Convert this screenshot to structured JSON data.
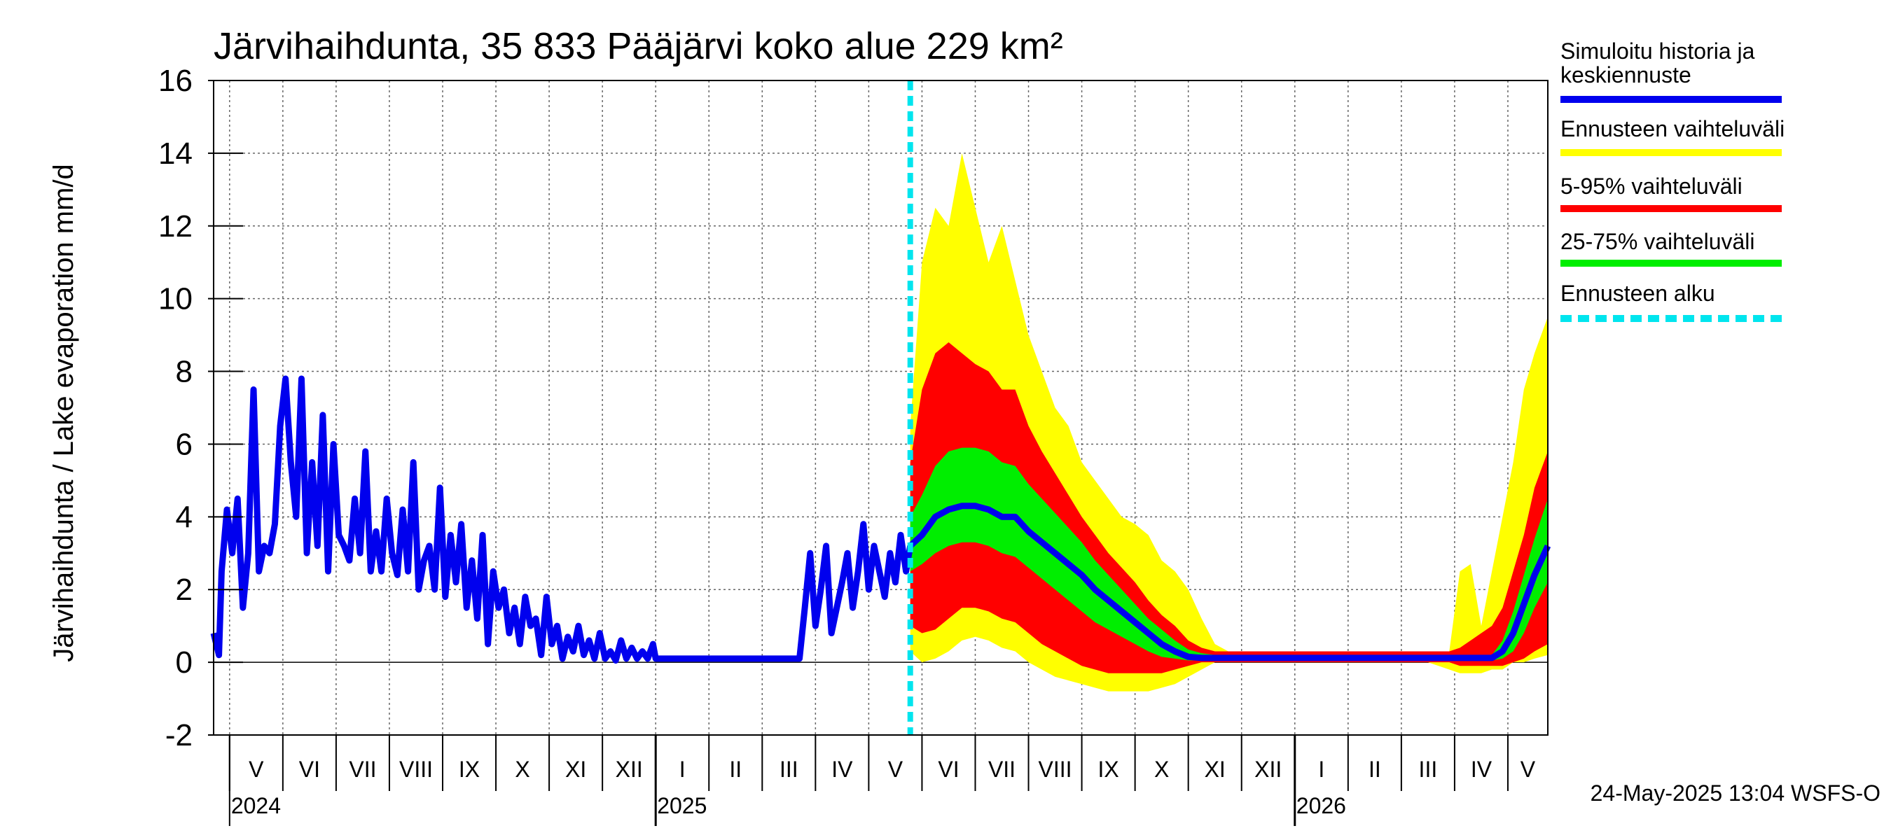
{
  "chart_data": {
    "type": "area",
    "title": "Järvihaihdunta, 35 833 Pääjärvi koko alue 229 km²",
    "ylabel": "Järvihaihdunta / Lake evaporation   mm/d",
    "ylim": [
      -2,
      16
    ],
    "yticks": [
      -2,
      0,
      2,
      4,
      6,
      8,
      10,
      12,
      14,
      16
    ],
    "ytick_labels": [
      "-2",
      "0",
      "2",
      "4",
      "6",
      "8",
      "10",
      "12",
      "14",
      "16"
    ],
    "grid": true,
    "x_unit": "months since 2024-04-01",
    "xlim": [
      0.7,
      25.75
    ],
    "months": [
      {
        "label": "V",
        "start": 1
      },
      {
        "label": "VI",
        "start": 2
      },
      {
        "label": "VII",
        "start": 3
      },
      {
        "label": "VIII",
        "start": 4
      },
      {
        "label": "IX",
        "start": 5
      },
      {
        "label": "X",
        "start": 6
      },
      {
        "label": "XI",
        "start": 7
      },
      {
        "label": "XII",
        "start": 8
      },
      {
        "label": "I",
        "start": 9
      },
      {
        "label": "II",
        "start": 10
      },
      {
        "label": "III",
        "start": 11
      },
      {
        "label": "IV",
        "start": 12
      },
      {
        "label": "V",
        "start": 13
      },
      {
        "label": "VI",
        "start": 14
      },
      {
        "label": "VII",
        "start": 15
      },
      {
        "label": "VIII",
        "start": 16
      },
      {
        "label": "IX",
        "start": 17
      },
      {
        "label": "X",
        "start": 18
      },
      {
        "label": "XI",
        "start": 19
      },
      {
        "label": "XII",
        "start": 20
      },
      {
        "label": "I",
        "start": 21
      },
      {
        "label": "II",
        "start": 22
      },
      {
        "label": "III",
        "start": 23
      },
      {
        "label": "IV",
        "start": 24
      },
      {
        "label": "V",
        "start": 25
      }
    ],
    "years": [
      {
        "label": "2024",
        "at": 1
      },
      {
        "label": "2025",
        "at": 9
      },
      {
        "label": "2026",
        "at": 21
      }
    ],
    "forecast_start": 13.78,
    "history_color": "#0000ee",
    "history": {
      "name": "Simuloitu historia ja keskiennuste",
      "x": [
        0.7,
        0.8,
        0.85,
        0.95,
        1.05,
        1.15,
        1.25,
        1.35,
        1.45,
        1.55,
        1.65,
        1.75,
        1.85,
        1.95,
        2.05,
        2.15,
        2.25,
        2.35,
        2.45,
        2.55,
        2.65,
        2.75,
        2.85,
        2.95,
        3.05,
        3.15,
        3.25,
        3.35,
        3.45,
        3.55,
        3.65,
        3.75,
        3.85,
        3.95,
        4.05,
        4.15,
        4.25,
        4.35,
        4.45,
        4.55,
        4.65,
        4.75,
        4.85,
        4.95,
        5.05,
        5.15,
        5.25,
        5.35,
        5.45,
        5.55,
        5.65,
        5.75,
        5.85,
        5.95,
        6.05,
        6.15,
        6.25,
        6.35,
        6.45,
        6.55,
        6.65,
        6.75,
        6.85,
        6.95,
        7.05,
        7.15,
        7.25,
        7.35,
        7.45,
        7.55,
        7.65,
        7.75,
        7.85,
        7.95,
        8.05,
        8.15,
        8.25,
        8.35,
        8.45,
        8.55,
        8.65,
        8.75,
        8.85,
        8.95,
        9.0,
        9.5,
        10.0,
        10.5,
        11.0,
        11.5,
        11.7,
        11.8,
        11.9,
        12.0,
        12.1,
        12.2,
        12.3,
        12.4,
        12.5,
        12.6,
        12.7,
        12.8,
        12.9,
        13.0,
        13.1,
        13.2,
        13.3,
        13.4,
        13.5,
        13.6,
        13.7,
        13.78
      ],
      "y": [
        0.8,
        0.2,
        2.5,
        4.2,
        3.0,
        4.5,
        1.5,
        3.0,
        7.5,
        2.5,
        3.2,
        3.0,
        3.8,
        6.5,
        7.8,
        5.5,
        4.0,
        7.8,
        3.0,
        5.5,
        3.2,
        6.8,
        2.5,
        6.0,
        3.5,
        3.2,
        2.8,
        4.5,
        3.0,
        5.8,
        2.5,
        3.6,
        2.5,
        4.5,
        3.0,
        2.4,
        4.2,
        2.5,
        5.5,
        2.0,
        2.8,
        3.2,
        2.0,
        4.8,
        1.8,
        3.5,
        2.2,
        3.8,
        1.5,
        2.8,
        1.2,
        3.5,
        0.5,
        2.5,
        1.5,
        2.0,
        0.8,
        1.5,
        0.5,
        1.8,
        1.0,
        1.2,
        0.2,
        1.8,
        0.5,
        1.0,
        0.1,
        0.7,
        0.3,
        1.0,
        0.2,
        0.6,
        0.1,
        0.8,
        0.1,
        0.3,
        0.05,
        0.6,
        0.1,
        0.4,
        0.1,
        0.3,
        0.1,
        0.5,
        0.1,
        0.1,
        0.1,
        0.1,
        0.1,
        0.1,
        0.1,
        1.5,
        3.0,
        1.0,
        2.0,
        3.2,
        0.8,
        1.5,
        2.2,
        3.0,
        1.5,
        2.5,
        3.8,
        2.0,
        3.2,
        2.5,
        1.8,
        3.0,
        2.2,
        3.5,
        2.5,
        3.2
      ]
    },
    "forecast_x": [
      13.78,
      14.0,
      14.25,
      14.5,
      14.75,
      15.0,
      15.25,
      15.5,
      15.75,
      16.0,
      16.25,
      16.5,
      16.75,
      17.0,
      17.25,
      17.5,
      17.75,
      18.0,
      18.25,
      18.5,
      18.75,
      19.0,
      19.25,
      19.5,
      19.75,
      20.0,
      20.3,
      20.6,
      21.0,
      21.5,
      22.0,
      22.5,
      23.0,
      23.5,
      23.9,
      24.1,
      24.3,
      24.5,
      24.7,
      24.9,
      25.1,
      25.3,
      25.5,
      25.75
    ],
    "forecast_median": [
      3.2,
      3.5,
      4.0,
      4.2,
      4.3,
      4.3,
      4.2,
      4.0,
      4.0,
      3.6,
      3.3,
      3.0,
      2.7,
      2.4,
      2.0,
      1.7,
      1.4,
      1.1,
      0.8,
      0.5,
      0.3,
      0.15,
      0.12,
      0.12,
      0.12,
      0.12,
      0.12,
      0.12,
      0.12,
      0.12,
      0.12,
      0.12,
      0.12,
      0.12,
      0.12,
      0.12,
      0.12,
      0.12,
      0.12,
      0.3,
      0.8,
      1.6,
      2.4,
      3.2
    ],
    "band_25_75": {
      "name": "25-75% vaihteluväli",
      "color": "#00ee00",
      "lower": [
        2.5,
        2.7,
        3.0,
        3.2,
        3.3,
        3.3,
        3.2,
        3.0,
        2.9,
        2.6,
        2.3,
        2.0,
        1.7,
        1.4,
        1.1,
        0.9,
        0.7,
        0.5,
        0.3,
        0.15,
        0.1,
        0.05,
        0.05,
        0.05,
        0.05,
        0.05,
        0.05,
        0.05,
        0.05,
        0.05,
        0.05,
        0.05,
        0.05,
        0.05,
        0.05,
        0.05,
        0.05,
        0.05,
        0.05,
        0.1,
        0.3,
        0.8,
        1.5,
        2.2
      ],
      "upper": [
        4.0,
        4.6,
        5.4,
        5.8,
        5.9,
        5.9,
        5.8,
        5.5,
        5.4,
        4.9,
        4.5,
        4.1,
        3.7,
        3.3,
        2.8,
        2.4,
        2.0,
        1.6,
        1.2,
        0.9,
        0.6,
        0.35,
        0.25,
        0.2,
        0.2,
        0.2,
        0.2,
        0.2,
        0.2,
        0.2,
        0.2,
        0.2,
        0.2,
        0.2,
        0.2,
        0.2,
        0.2,
        0.2,
        0.2,
        0.6,
        1.4,
        2.4,
        3.4,
        4.5
      ]
    },
    "band_5_95": {
      "name": "5-95% vaihteluväli",
      "color": "#ff0000",
      "lower": [
        1.0,
        0.8,
        0.9,
        1.2,
        1.5,
        1.5,
        1.4,
        1.2,
        1.1,
        0.8,
        0.5,
        0.3,
        0.1,
        -0.1,
        -0.2,
        -0.3,
        -0.3,
        -0.3,
        -0.3,
        -0.3,
        -0.2,
        -0.1,
        0.0,
        0.0,
        0.0,
        0.0,
        0.0,
        0.0,
        0.0,
        0.0,
        0.0,
        0.0,
        0.0,
        0.0,
        0.0,
        -0.1,
        -0.1,
        -0.1,
        -0.1,
        -0.1,
        0.0,
        0.1,
        0.3,
        0.5
      ],
      "upper": [
        5.5,
        7.5,
        8.5,
        8.8,
        8.5,
        8.2,
        8.0,
        7.5,
        7.5,
        6.5,
        5.8,
        5.2,
        4.6,
        4.0,
        3.5,
        3.0,
        2.6,
        2.2,
        1.7,
        1.3,
        1.0,
        0.6,
        0.4,
        0.3,
        0.3,
        0.3,
        0.3,
        0.3,
        0.3,
        0.3,
        0.3,
        0.3,
        0.3,
        0.3,
        0.3,
        0.4,
        0.6,
        0.8,
        1.0,
        1.5,
        2.5,
        3.5,
        4.8,
        5.8
      ]
    },
    "band_full": {
      "name": "Ennusteen vaihteluväli",
      "color": "#ffff00",
      "lower": [
        0.3,
        0.0,
        0.1,
        0.3,
        0.6,
        0.7,
        0.6,
        0.4,
        0.3,
        0.0,
        -0.2,
        -0.4,
        -0.5,
        -0.6,
        -0.7,
        -0.8,
        -0.8,
        -0.8,
        -0.8,
        -0.7,
        -0.6,
        -0.4,
        -0.2,
        0.0,
        0.0,
        0.0,
        0.0,
        0.0,
        0.0,
        0.0,
        0.0,
        0.0,
        0.0,
        0.0,
        -0.2,
        -0.3,
        -0.3,
        -0.3,
        -0.2,
        -0.2,
        0.0,
        0.0,
        0.1,
        0.2
      ],
      "upper": [
        6.5,
        11.0,
        12.5,
        12.0,
        14.0,
        12.5,
        11.0,
        12.0,
        10.5,
        9.0,
        8.0,
        7.0,
        6.5,
        5.5,
        5.0,
        4.5,
        4.0,
        3.8,
        3.5,
        2.8,
        2.5,
        2.0,
        1.2,
        0.5,
        0.3,
        0.3,
        0.3,
        0.3,
        0.3,
        0.3,
        0.3,
        0.3,
        0.3,
        0.3,
        0.3,
        2.5,
        2.7,
        1.0,
        2.5,
        4.0,
        5.5,
        7.5,
        8.5,
        9.5
      ]
    },
    "legend": [
      {
        "label": "Simuloitu historia ja",
        "label2": "keskiennuste",
        "color": "#0000ee",
        "style": "solid"
      },
      {
        "label": "Ennusteen vaihteluväli",
        "color": "#ffff00",
        "style": "solid"
      },
      {
        "label": "5-95% vaihteluväli",
        "color": "#ff0000",
        "style": "solid"
      },
      {
        "label": "25-75% vaihteluväli",
        "color": "#00ee00",
        "style": "solid"
      },
      {
        "label": "Ennusteen alku",
        "color": "#00e5ee",
        "style": "dashed"
      }
    ],
    "timestamp": "24-May-2025 13:04 WSFS-O"
  }
}
